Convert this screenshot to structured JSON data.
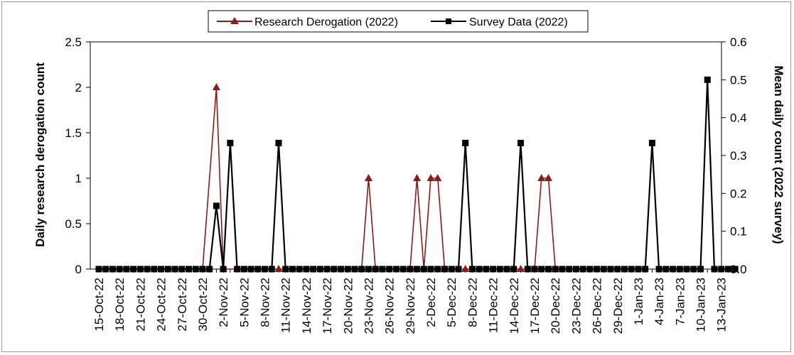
{
  "chart_data": {
    "type": "line",
    "x": [
      "2022-10-15",
      "2022-10-16",
      "2022-10-17",
      "2022-10-18",
      "2022-10-19",
      "2022-10-20",
      "2022-10-21",
      "2022-10-22",
      "2022-10-23",
      "2022-10-24",
      "2022-10-25",
      "2022-10-26",
      "2022-10-27",
      "2022-10-28",
      "2022-10-29",
      "2022-10-30",
      "2022-10-31",
      "2022-11-01",
      "2022-11-02",
      "2022-11-03",
      "2022-11-04",
      "2022-11-05",
      "2022-11-06",
      "2022-11-07",
      "2022-11-08",
      "2022-11-09",
      "2022-11-10",
      "2022-11-11",
      "2022-11-12",
      "2022-11-13",
      "2022-11-14",
      "2022-11-15",
      "2022-11-16",
      "2022-11-17",
      "2022-11-18",
      "2022-11-19",
      "2022-11-20",
      "2022-11-21",
      "2022-11-22",
      "2022-11-23",
      "2022-11-24",
      "2022-11-25",
      "2022-11-26",
      "2022-11-27",
      "2022-11-28",
      "2022-11-29",
      "2022-11-30",
      "2022-12-01",
      "2022-12-02",
      "2022-12-03",
      "2022-12-04",
      "2022-12-05",
      "2022-12-06",
      "2022-12-07",
      "2022-12-08",
      "2022-12-09",
      "2022-12-10",
      "2022-12-11",
      "2022-12-12",
      "2022-12-13",
      "2022-12-14",
      "2022-12-15",
      "2022-12-16",
      "2022-12-17",
      "2022-12-18",
      "2022-12-19",
      "2022-12-20",
      "2022-12-21",
      "2022-12-22",
      "2022-12-23",
      "2022-12-24",
      "2022-12-25",
      "2022-12-26",
      "2022-12-27",
      "2022-12-28",
      "2022-12-29",
      "2022-12-30",
      "2022-12-31",
      "2023-01-01",
      "2023-01-02",
      "2023-01-03",
      "2023-01-04",
      "2023-01-05",
      "2023-01-06",
      "2023-01-07",
      "2023-01-08",
      "2023-01-09",
      "2023-01-10",
      "2023-01-11",
      "2023-01-12",
      "2023-01-13",
      "2023-01-14",
      "2023-01-15"
    ],
    "x_tick_labels": [
      "15-Oct-22",
      "18-Oct-22",
      "21-Oct-22",
      "24-Oct-22",
      "27-Oct-22",
      "30-Oct-22",
      "2-Nov-22",
      "5-Nov-22",
      "8-Nov-22",
      "11-Nov-22",
      "14-Nov-22",
      "17-Nov-22",
      "20-Nov-22",
      "23-Nov-22",
      "26-Nov-22",
      "29-Nov-22",
      "2-Dec-22",
      "5-Dec-22",
      "8-Dec-22",
      "11-Dec-22",
      "14-Dec-22",
      "17-Dec-22",
      "20-Dec-22",
      "23-Dec-22",
      "26-Dec-22",
      "29-Dec-22",
      "1-Jan-23",
      "4-Jan-23",
      "7-Jan-23",
      "10-Jan-23",
      "13-Jan-23"
    ],
    "ylabel": "Daily research derogation count",
    "y2label": "Mean daily count (2022 survey)",
    "ylim": [
      0,
      2.5
    ],
    "y2lim": [
      0,
      0.6
    ],
    "y_ticks": [
      "0",
      "0.5",
      "1",
      "1.5",
      "2",
      "2.5"
    ],
    "y2_ticks": [
      "0.0",
      "0.1",
      "0.2",
      "0.3",
      "0.4",
      "0.5",
      "0.6"
    ],
    "grid": false,
    "legend_position": "top-center",
    "series": [
      {
        "name": "Research Derogation (2022)",
        "axis": "left",
        "color": "#8b1a1a",
        "marker": "triangle",
        "x": [
          "2022-10-30",
          "2022-11-01",
          "2022-11-02",
          "2022-11-04",
          "2022-11-10",
          "2022-11-11",
          "2022-11-22",
          "2022-11-23",
          "2022-11-24",
          "2022-11-29",
          "2022-11-30",
          "2022-12-01",
          "2022-12-02",
          "2022-12-03",
          "2022-12-04",
          "2022-12-07",
          "2022-12-08",
          "2022-12-14",
          "2022-12-15",
          "2022-12-17",
          "2022-12-18",
          "2022-12-19",
          "2022-12-20"
        ],
        "values": [
          0,
          2,
          0,
          0,
          0,
          0,
          0,
          1,
          0,
          0,
          1,
          0,
          1,
          1,
          0,
          0,
          0,
          0,
          0,
          0,
          1,
          1,
          0
        ]
      },
      {
        "name": "Survey Data (2022)",
        "axis": "right",
        "color": "#000000",
        "marker": "square",
        "x": [
          "2022-10-15",
          "2022-10-16",
          "2022-10-17",
          "2022-10-18",
          "2022-10-19",
          "2022-10-20",
          "2022-10-21",
          "2022-10-22",
          "2022-10-23",
          "2022-10-24",
          "2022-10-25",
          "2022-10-26",
          "2022-10-27",
          "2022-10-28",
          "2022-10-29",
          "2022-10-30",
          "2022-10-31",
          "2022-11-01",
          "2022-11-02",
          "2022-11-03",
          "2022-11-04",
          "2022-11-05",
          "2022-11-06",
          "2022-11-07",
          "2022-11-08",
          "2022-11-09",
          "2022-11-10",
          "2022-11-11",
          "2022-11-12",
          "2022-11-13",
          "2022-11-14",
          "2022-11-15",
          "2022-11-16",
          "2022-11-17",
          "2022-11-18",
          "2022-11-19",
          "2022-11-20",
          "2022-11-21",
          "2022-11-22",
          "2022-11-23",
          "2022-11-24",
          "2022-11-25",
          "2022-11-26",
          "2022-11-27",
          "2022-11-28",
          "2022-11-29",
          "2022-11-30",
          "2022-12-01",
          "2022-12-02",
          "2022-12-03",
          "2022-12-04",
          "2022-12-05",
          "2022-12-06",
          "2022-12-07",
          "2022-12-08",
          "2022-12-09",
          "2022-12-10",
          "2022-12-11",
          "2022-12-12",
          "2022-12-13",
          "2022-12-14",
          "2022-12-15",
          "2022-12-16",
          "2022-12-17",
          "2022-12-18",
          "2022-12-19",
          "2022-12-20",
          "2022-12-21",
          "2022-12-22",
          "2022-12-23",
          "2022-12-24",
          "2022-12-25",
          "2022-12-26",
          "2022-12-27",
          "2022-12-28",
          "2022-12-29",
          "2022-12-30",
          "2022-12-31",
          "2023-01-01",
          "2023-01-02",
          "2023-01-03",
          "2023-01-04",
          "2023-01-05",
          "2023-01-06",
          "2023-01-07",
          "2023-01-08",
          "2023-01-09",
          "2023-01-10",
          "2023-01-11",
          "2023-01-12",
          "2023-01-13",
          "2023-01-14",
          "2023-01-15"
        ],
        "values": [
          0,
          0,
          0,
          0,
          0,
          0,
          0,
          0,
          0,
          0,
          0,
          0,
          0,
          0,
          0,
          0,
          0,
          0.167,
          0,
          0.333,
          0,
          0,
          0,
          0,
          0,
          0,
          0.333,
          0,
          0,
          0,
          0,
          0,
          0,
          0,
          0,
          0,
          0,
          0,
          0,
          0,
          0,
          0,
          0,
          0,
          0,
          0,
          0,
          0,
          0,
          0,
          0,
          0,
          0,
          0.333,
          0,
          0,
          0,
          0,
          0,
          0,
          0,
          0.333,
          0,
          0,
          0,
          0,
          0,
          0,
          0,
          0,
          0,
          0,
          0,
          0,
          0,
          0,
          0,
          0,
          0,
          0,
          0.333,
          0,
          0,
          0,
          0,
          0,
          0,
          0,
          0.5,
          0,
          0,
          0,
          0
        ]
      }
    ]
  }
}
